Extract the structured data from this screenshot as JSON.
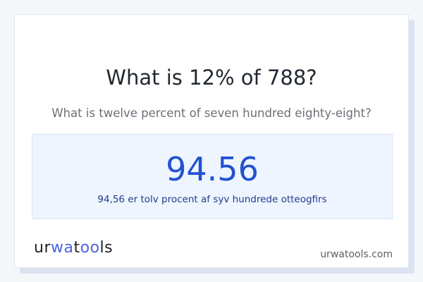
{
  "title": "What is 12% of 788?",
  "subtitle": "What is twelve percent of seven hundred eighty-eight?",
  "answer": {
    "value": "94.56",
    "words": "94,56 er tolv procent af syv hundrede otteogfirs"
  },
  "footer": {
    "logo": "urwatools",
    "site": "urwatools.com"
  },
  "colors": {
    "accent": "#2352d1",
    "answer_bg": "#eef5ff"
  }
}
